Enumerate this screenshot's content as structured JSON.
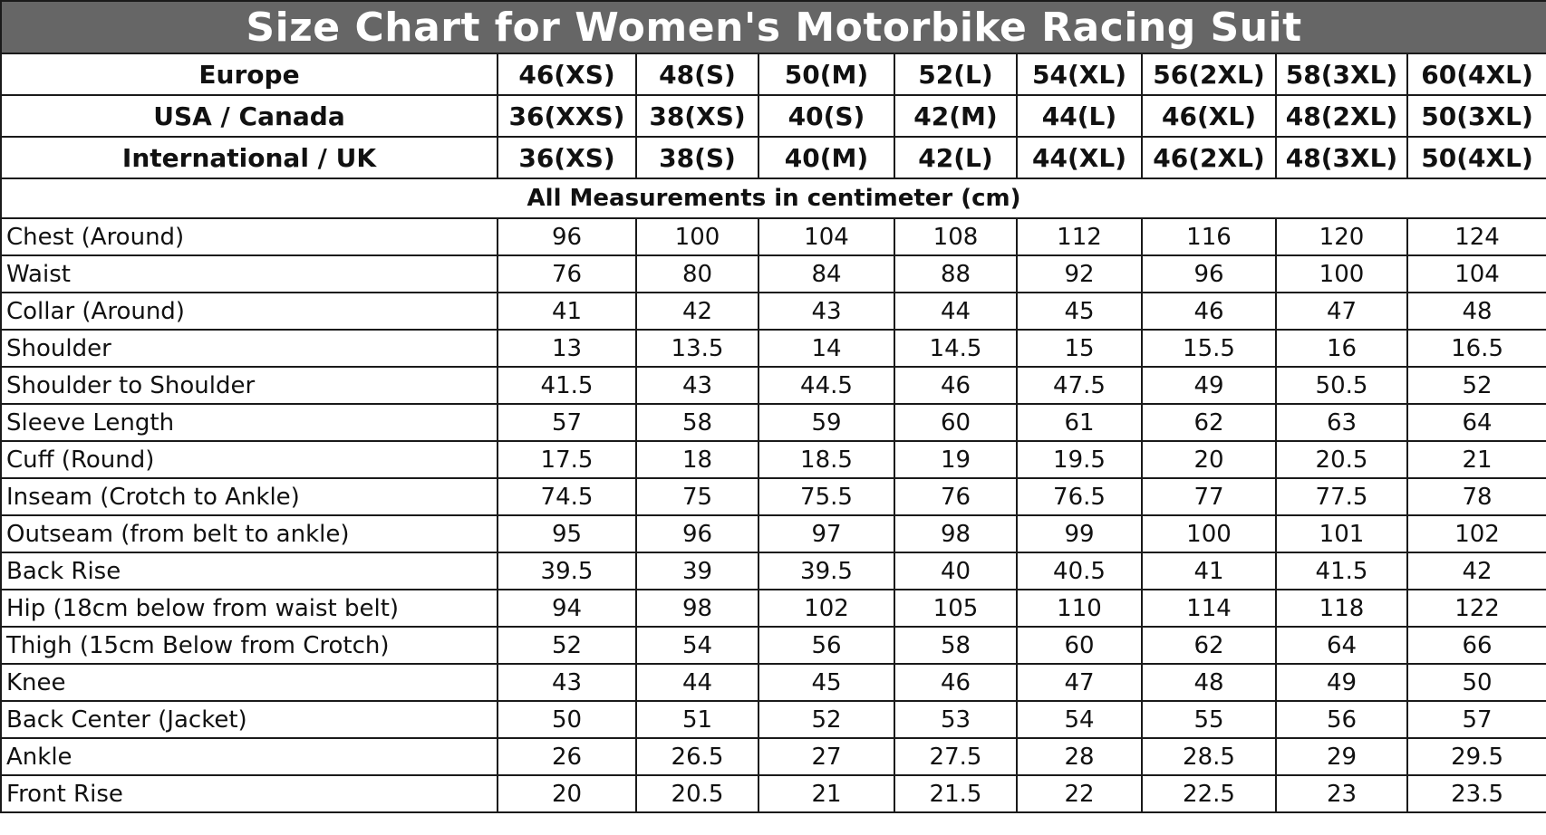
{
  "title": "Size Chart for Women's Motorbike Racing Suit",
  "size_systems": [
    {
      "label": "Europe",
      "sizes": [
        "46(XS)",
        "48(S)",
        "50(M)",
        "52(L)",
        "54(XL)",
        "56(2XL)",
        "58(3XL)",
        "60(4XL)"
      ]
    },
    {
      "label": "USA / Canada",
      "sizes": [
        "36(XXS)",
        "38(XS)",
        "40(S)",
        "42(M)",
        "44(L)",
        "46(XL)",
        "48(2XL)",
        "50(3XL)"
      ]
    },
    {
      "label": "International / UK",
      "sizes": [
        "36(XS)",
        "38(S)",
        "40(M)",
        "42(L)",
        "44(XL)",
        "46(2XL)",
        "48(3XL)",
        "50(4XL)"
      ]
    }
  ],
  "units_note": "All Measurements in centimeter (cm)",
  "measurements": [
    {
      "label": "Chest (Around)",
      "values": [
        "96",
        "100",
        "104",
        "108",
        "112",
        "116",
        "120",
        "124"
      ]
    },
    {
      "label": "Waist",
      "values": [
        "76",
        "80",
        "84",
        "88",
        "92",
        "96",
        "100",
        "104"
      ]
    },
    {
      "label": "Collar (Around)",
      "values": [
        "41",
        "42",
        "43",
        "44",
        "45",
        "46",
        "47",
        "48"
      ]
    },
    {
      "label": "Shoulder",
      "values": [
        "13",
        "13.5",
        "14",
        "14.5",
        "15",
        "15.5",
        "16",
        "16.5"
      ]
    },
    {
      "label": "Shoulder to Shoulder",
      "values": [
        "41.5",
        "43",
        "44.5",
        "46",
        "47.5",
        "49",
        "50.5",
        "52"
      ]
    },
    {
      "label": "Sleeve Length",
      "values": [
        "57",
        "58",
        "59",
        "60",
        "61",
        "62",
        "63",
        "64"
      ]
    },
    {
      "label": "Cuff (Round)",
      "values": [
        "17.5",
        "18",
        "18.5",
        "19",
        "19.5",
        "20",
        "20.5",
        "21"
      ]
    },
    {
      "label": "Inseam (Crotch to Ankle)",
      "values": [
        "74.5",
        "75",
        "75.5",
        "76",
        "76.5",
        "77",
        "77.5",
        "78"
      ]
    },
    {
      "label": "Outseam (from belt to ankle)",
      "values": [
        "95",
        "96",
        "97",
        "98",
        "99",
        "100",
        "101",
        "102"
      ]
    },
    {
      "label": "Back Rise",
      "values": [
        "39.5",
        "39",
        "39.5",
        "40",
        "40.5",
        "41",
        "41.5",
        "42"
      ]
    },
    {
      "label": "Hip (18cm below from waist belt)",
      "values": [
        "94",
        "98",
        "102",
        "105",
        "110",
        "114",
        "118",
        "122"
      ]
    },
    {
      "label": "Thigh (15cm Below from Crotch)",
      "values": [
        "52",
        "54",
        "56",
        "58",
        "60",
        "62",
        "64",
        "66"
      ]
    },
    {
      "label": "Knee",
      "values": [
        "43",
        "44",
        "45",
        "46",
        "47",
        "48",
        "49",
        "50"
      ]
    },
    {
      "label": "Back Center (Jacket)",
      "values": [
        "50",
        "51",
        "52",
        "53",
        "54",
        "55",
        "56",
        "57"
      ]
    },
    {
      "label": "Ankle",
      "values": [
        "26",
        "26.5",
        "27",
        "27.5",
        "28",
        "28.5",
        "29",
        "29.5"
      ]
    },
    {
      "label": "Front Rise",
      "values": [
        "20",
        "20.5",
        "21",
        "21.5",
        "22",
        "22.5",
        "23",
        "23.5"
      ]
    }
  ],
  "colors": {
    "title_background": "#666666",
    "title_text": "#ffffff",
    "border": "#1a1a1a"
  }
}
